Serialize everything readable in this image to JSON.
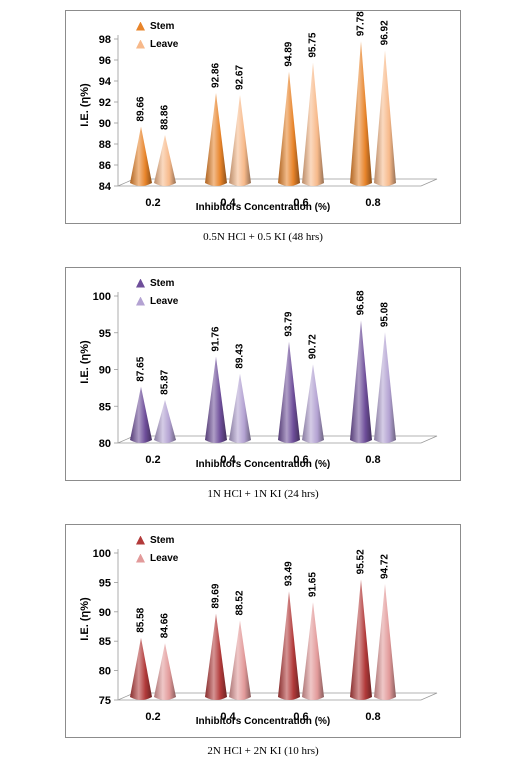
{
  "chart_data": [
    {
      "type": "bar",
      "caption": "0.5N HCl + 0.5 KI (48 hrs)",
      "xlabel": "Inhibitors Concentration (%)",
      "ylabel": "I.E. (η%)",
      "categories": [
        "0.2",
        "0.4",
        "0.6",
        "0.8"
      ],
      "ylim": [
        84,
        98
      ],
      "yticks": [
        "84",
        "86",
        "88",
        "90",
        "92",
        "94",
        "96",
        "98"
      ],
      "legend_position": "top-left",
      "series": [
        {
          "name": "Stem",
          "values": [
            89.66,
            92.86,
            94.89,
            97.78
          ],
          "labels": [
            "89.66",
            "92.86",
            "94.89",
            "97.78"
          ],
          "color": "#E8842A"
        },
        {
          "name": "Leave",
          "values": [
            88.86,
            92.67,
            95.75,
            96.92
          ],
          "labels": [
            "88.86",
            "92.67",
            "95.75",
            "96.92"
          ],
          "color": "#F7B98A"
        }
      ]
    },
    {
      "type": "bar",
      "caption": "1N HCl + 1N KI (24 hrs)",
      "xlabel": "Inhibitors Concentration (%)",
      "ylabel": "I.E. (η%)",
      "categories": [
        "0.2",
        "0.4",
        "0.6",
        "0.8"
      ],
      "ylim": [
        80,
        100
      ],
      "yticks": [
        "80",
        "85",
        "90",
        "95",
        "100"
      ],
      "legend_position": "top-left",
      "series": [
        {
          "name": "Stem",
          "values": [
            87.65,
            91.76,
            93.79,
            96.68
          ],
          "labels": [
            "87.65",
            "91.76",
            "93.79",
            "96.68"
          ],
          "color": "#6E4E9A"
        },
        {
          "name": "Leave",
          "values": [
            85.87,
            89.43,
            90.72,
            95.08
          ],
          "labels": [
            "85.87",
            "89.43",
            "90.72",
            "95.08"
          ],
          "color": "#B3A2D2"
        }
      ]
    },
    {
      "type": "bar",
      "caption": "2N HCl + 2N KI (10 hrs)",
      "xlabel": "Inhibitors Concentration (%)",
      "ylabel": "I.E. (η%)",
      "categories": [
        "0.2",
        "0.4",
        "0.6",
        "0.8"
      ],
      "ylim": [
        75,
        100
      ],
      "yticks": [
        "75",
        "80",
        "85",
        "90",
        "95",
        "100"
      ],
      "legend_position": "top-left",
      "series": [
        {
          "name": "Stem",
          "values": [
            85.58,
            89.69,
            93.49,
            95.52
          ],
          "labels": [
            "85.58",
            "89.69",
            "93.49",
            "95.52"
          ],
          "color": "#B23A3A"
        },
        {
          "name": "Leave",
          "values": [
            84.66,
            88.52,
            91.65,
            94.72
          ],
          "labels": [
            "84.66",
            "88.52",
            "91.65",
            "94.72"
          ],
          "color": "#E29A9A"
        }
      ]
    }
  ]
}
